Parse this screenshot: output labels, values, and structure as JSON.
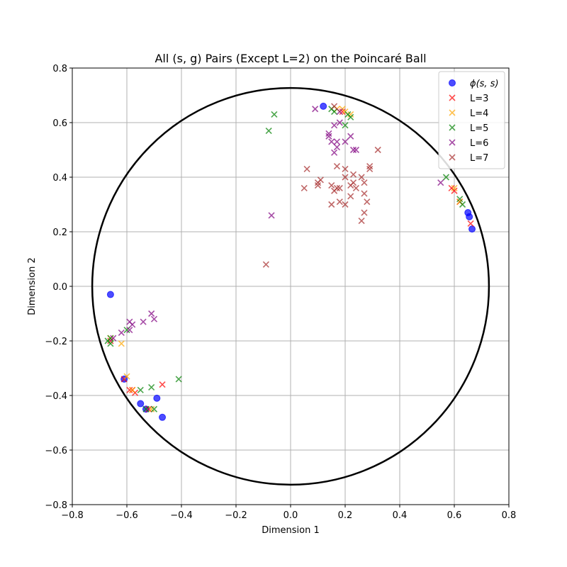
{
  "chart_data": {
    "type": "scatter",
    "title": "All (s, g) Pairs (Except L=2) on the Poincaré Ball",
    "xlabel": "Dimension 1",
    "ylabel": "Dimension 2",
    "xlim": [
      -0.8,
      0.8
    ],
    "ylim": [
      -0.8,
      0.8
    ],
    "xticks": [
      "−0.8",
      "−0.6",
      "−0.4",
      "−0.2",
      "0.0",
      "0.2",
      "0.4",
      "0.6",
      "0.8"
    ],
    "yticks": [
      "−0.8",
      "−0.6",
      "−0.4",
      "−0.2",
      "0.0",
      "0.2",
      "0.4",
      "0.6",
      "0.8"
    ],
    "tick_values": [
      -0.8,
      -0.6,
      -0.4,
      -0.2,
      0.0,
      0.2,
      0.4,
      0.6,
      0.8
    ],
    "grid": true,
    "legend_position": "top-right",
    "boundary_circle": {
      "radius": 0.727,
      "color": "#000000"
    },
    "series": [
      {
        "name": "ϕ(s, s)",
        "marker": "circle",
        "color": "#0000ff",
        "points": [
          [
            0.12,
            0.66
          ],
          [
            -0.66,
            -0.03
          ],
          [
            -0.61,
            -0.34
          ],
          [
            -0.55,
            -0.43
          ],
          [
            -0.53,
            -0.45
          ],
          [
            -0.49,
            -0.41
          ],
          [
            -0.47,
            -0.48
          ],
          [
            0.65,
            0.27
          ],
          [
            0.655,
            0.255
          ],
          [
            0.665,
            0.21
          ]
        ]
      },
      {
        "name": "L=3",
        "marker": "x",
        "color": "#ff0000",
        "points": [
          [
            -0.61,
            -0.34
          ],
          [
            -0.59,
            -0.38
          ],
          [
            -0.58,
            -0.38
          ],
          [
            -0.57,
            -0.39
          ],
          [
            -0.52,
            -0.45
          ],
          [
            -0.47,
            -0.36
          ],
          [
            -0.66,
            -0.2
          ],
          [
            0.59,
            0.36
          ],
          [
            0.6,
            0.35
          ],
          [
            0.62,
            0.31
          ],
          [
            0.66,
            0.23
          ],
          [
            0.19,
            0.64
          ]
        ]
      },
      {
        "name": "L=4",
        "marker": "x",
        "color": "#ffa500",
        "points": [
          [
            -0.6,
            -0.33
          ],
          [
            -0.62,
            -0.21
          ],
          [
            -0.66,
            -0.19
          ],
          [
            -0.58,
            -0.38
          ],
          [
            -0.51,
            -0.45
          ],
          [
            0.6,
            0.36
          ],
          [
            0.62,
            0.31
          ],
          [
            0.17,
            0.65
          ],
          [
            0.19,
            0.65
          ],
          [
            0.2,
            0.64
          ],
          [
            0.22,
            0.63
          ]
        ]
      },
      {
        "name": "L=5",
        "marker": "x",
        "color": "#008000",
        "points": [
          [
            -0.08,
            0.57
          ],
          [
            -0.06,
            0.63
          ],
          [
            0.15,
            0.65
          ],
          [
            0.16,
            0.64
          ],
          [
            0.2,
            0.59
          ],
          [
            0.21,
            0.63
          ],
          [
            0.22,
            0.62
          ],
          [
            0.57,
            0.4
          ],
          [
            0.62,
            0.32
          ],
          [
            0.63,
            0.3
          ],
          [
            -0.41,
            -0.34
          ],
          [
            -0.51,
            -0.37
          ],
          [
            -0.55,
            -0.38
          ],
          [
            -0.6,
            -0.16
          ],
          [
            -0.66,
            -0.19
          ],
          [
            -0.66,
            -0.21
          ],
          [
            -0.67,
            -0.2
          ],
          [
            -0.5,
            -0.45
          ],
          [
            -0.53,
            -0.45
          ]
        ]
      },
      {
        "name": "L=6",
        "marker": "x",
        "color": "#800080",
        "points": [
          [
            0.09,
            0.65
          ],
          [
            0.14,
            0.56
          ],
          [
            0.14,
            0.55
          ],
          [
            0.15,
            0.53
          ],
          [
            0.16,
            0.59
          ],
          [
            0.16,
            0.49
          ],
          [
            0.17,
            0.51
          ],
          [
            0.17,
            0.53
          ],
          [
            0.18,
            0.6
          ],
          [
            0.2,
            0.53
          ],
          [
            0.22,
            0.55
          ],
          [
            0.23,
            0.5
          ],
          [
            0.24,
            0.5
          ],
          [
            0.18,
            0.64
          ],
          [
            -0.07,
            0.26
          ],
          [
            0.55,
            0.38
          ],
          [
            -0.51,
            -0.1
          ],
          [
            -0.5,
            -0.12
          ],
          [
            -0.54,
            -0.13
          ],
          [
            -0.58,
            -0.14
          ],
          [
            -0.59,
            -0.13
          ],
          [
            -0.59,
            -0.16
          ],
          [
            -0.62,
            -0.17
          ],
          [
            -0.65,
            -0.19
          ]
        ]
      },
      {
        "name": "L=7",
        "marker": "x",
        "color": "#a52a2a",
        "points": [
          [
            0.05,
            0.36
          ],
          [
            0.06,
            0.43
          ],
          [
            0.1,
            0.38
          ],
          [
            0.1,
            0.37
          ],
          [
            0.11,
            0.39
          ],
          [
            0.15,
            0.37
          ],
          [
            0.15,
            0.3
          ],
          [
            0.16,
            0.35
          ],
          [
            0.17,
            0.44
          ],
          [
            0.17,
            0.36
          ],
          [
            0.18,
            0.31
          ],
          [
            0.18,
            0.36
          ],
          [
            0.2,
            0.4
          ],
          [
            0.2,
            0.43
          ],
          [
            0.2,
            0.3
          ],
          [
            0.22,
            0.37
          ],
          [
            0.22,
            0.33
          ],
          [
            0.23,
            0.41
          ],
          [
            0.23,
            0.38
          ],
          [
            0.24,
            0.36
          ],
          [
            0.26,
            0.4
          ],
          [
            0.27,
            0.38
          ],
          [
            0.27,
            0.34
          ],
          [
            0.28,
            0.31
          ],
          [
            0.29,
            0.44
          ],
          [
            0.29,
            0.43
          ],
          [
            0.32,
            0.5
          ],
          [
            0.26,
            0.24
          ],
          [
            0.27,
            0.27
          ],
          [
            -0.09,
            0.08
          ],
          [
            0.16,
            0.66
          ]
        ]
      }
    ]
  }
}
